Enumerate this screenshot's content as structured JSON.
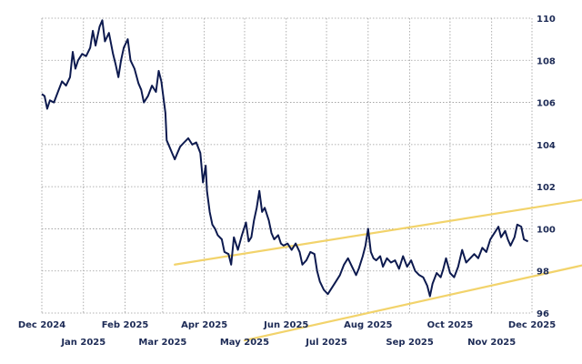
{
  "chart_data": {
    "type": "line",
    "title": "",
    "xlabel": "",
    "ylabel": "",
    "ylim": [
      96,
      110
    ],
    "x_range": [
      "2024-12-01",
      "2025-12-01"
    ],
    "y_ticks": [
      96,
      98,
      100,
      102,
      104,
      106,
      108,
      110
    ],
    "x_ticks_top_row": [
      {
        "date": "2024-12-01",
        "label": "Dec 2024"
      },
      {
        "date": "2025-02-01",
        "label": "Feb 2025"
      },
      {
        "date": "2025-04-01",
        "label": "Apr 2025"
      },
      {
        "date": "2025-06-01",
        "label": "Jun 2025"
      },
      {
        "date": "2025-08-01",
        "label": "Aug 2025"
      },
      {
        "date": "2025-10-01",
        "label": "Oct 2025"
      },
      {
        "date": "2025-12-01",
        "label": "Dec 2025"
      }
    ],
    "x_ticks_bottom_row": [
      {
        "date": "2025-01-01",
        "label": "Jan 2025"
      },
      {
        "date": "2025-03-01",
        "label": "Mar 2025"
      },
      {
        "date": "2025-05-01",
        "label": "May 2025"
      },
      {
        "date": "2025-07-01",
        "label": "Jul 2025"
      },
      {
        "date": "2025-09-01",
        "label": "Sep 2025"
      },
      {
        "date": "2025-11-01",
        "label": "Nov 2025"
      }
    ],
    "grid": true,
    "colors": {
      "line": "#0d1a4f",
      "trend": "#f2d36b",
      "grid": "#9a9a9a",
      "text": "#1c2a55"
    },
    "series": [
      {
        "points": [
          [
            "2024-12-01",
            106.4
          ],
          [
            "2024-12-03",
            106.3
          ],
          [
            "2024-12-05",
            105.7
          ],
          [
            "2024-12-07",
            106.1
          ],
          [
            "2024-12-10",
            106.0
          ],
          [
            "2024-12-13",
            106.5
          ],
          [
            "2024-12-16",
            107.0
          ],
          [
            "2024-12-19",
            106.8
          ],
          [
            "2024-12-22",
            107.2
          ],
          [
            "2024-12-24",
            108.4
          ],
          [
            "2024-12-26",
            107.6
          ],
          [
            "2024-12-28",
            108.0
          ],
          [
            "2024-12-31",
            108.3
          ],
          [
            "2025-01-03",
            108.2
          ],
          [
            "2025-01-06",
            108.6
          ],
          [
            "2025-01-08",
            109.4
          ],
          [
            "2025-01-10",
            108.7
          ],
          [
            "2025-01-13",
            109.6
          ],
          [
            "2025-01-15",
            109.9
          ],
          [
            "2025-01-17",
            108.9
          ],
          [
            "2025-01-20",
            109.3
          ],
          [
            "2025-01-23",
            108.3
          ],
          [
            "2025-01-25",
            107.8
          ],
          [
            "2025-01-27",
            107.2
          ],
          [
            "2025-01-29",
            108.0
          ],
          [
            "2025-01-31",
            108.6
          ],
          [
            "2025-02-03",
            109.0
          ],
          [
            "2025-02-05",
            108.0
          ],
          [
            "2025-02-08",
            107.6
          ],
          [
            "2025-02-11",
            106.9
          ],
          [
            "2025-02-13",
            106.6
          ],
          [
            "2025-02-15",
            106.0
          ],
          [
            "2025-02-18",
            106.3
          ],
          [
            "2025-02-21",
            106.8
          ],
          [
            "2025-02-24",
            106.5
          ],
          [
            "2025-02-26",
            107.5
          ],
          [
            "2025-02-28",
            107.0
          ],
          [
            "2025-03-03",
            105.5
          ],
          [
            "2025-03-04",
            104.2
          ],
          [
            "2025-03-06",
            103.9
          ],
          [
            "2025-03-08",
            103.6
          ],
          [
            "2025-03-10",
            103.3
          ],
          [
            "2025-03-12",
            103.6
          ],
          [
            "2025-03-14",
            103.9
          ],
          [
            "2025-03-17",
            104.1
          ],
          [
            "2025-03-20",
            104.3
          ],
          [
            "2025-03-23",
            104.0
          ],
          [
            "2025-03-26",
            104.1
          ],
          [
            "2025-03-29",
            103.6
          ],
          [
            "2025-03-31",
            102.2
          ],
          [
            "2025-04-02",
            103.0
          ],
          [
            "2025-04-03",
            101.8
          ],
          [
            "2025-04-05",
            100.8
          ],
          [
            "2025-04-07",
            100.2
          ],
          [
            "2025-04-09",
            100.0
          ],
          [
            "2025-04-11",
            99.7
          ],
          [
            "2025-04-14",
            99.5
          ],
          [
            "2025-04-16",
            98.9
          ],
          [
            "2025-04-19",
            98.8
          ],
          [
            "2025-04-21",
            98.3
          ],
          [
            "2025-04-23",
            99.6
          ],
          [
            "2025-04-26",
            99.0
          ],
          [
            "2025-04-29",
            99.7
          ],
          [
            "2025-05-02",
            100.3
          ],
          [
            "2025-05-04",
            99.4
          ],
          [
            "2025-05-06",
            99.6
          ],
          [
            "2025-05-08",
            100.4
          ],
          [
            "2025-05-10",
            101.0
          ],
          [
            "2025-05-12",
            101.8
          ],
          [
            "2025-05-14",
            100.8
          ],
          [
            "2025-05-16",
            101.0
          ],
          [
            "2025-05-19",
            100.4
          ],
          [
            "2025-05-21",
            99.8
          ],
          [
            "2025-05-23",
            99.5
          ],
          [
            "2025-05-26",
            99.7
          ],
          [
            "2025-05-28",
            99.3
          ],
          [
            "2025-05-30",
            99.2
          ],
          [
            "2025-06-02",
            99.3
          ],
          [
            "2025-06-05",
            99.0
          ],
          [
            "2025-06-08",
            99.3
          ],
          [
            "2025-06-11",
            98.9
          ],
          [
            "2025-06-13",
            98.3
          ],
          [
            "2025-06-16",
            98.5
          ],
          [
            "2025-06-19",
            98.9
          ],
          [
            "2025-06-22",
            98.8
          ],
          [
            "2025-06-24",
            98.0
          ],
          [
            "2025-06-26",
            97.5
          ],
          [
            "2025-06-29",
            97.1
          ],
          [
            "2025-07-02",
            96.9
          ],
          [
            "2025-07-05",
            97.2
          ],
          [
            "2025-07-08",
            97.5
          ],
          [
            "2025-07-11",
            97.8
          ],
          [
            "2025-07-14",
            98.3
          ],
          [
            "2025-07-17",
            98.6
          ],
          [
            "2025-07-20",
            98.2
          ],
          [
            "2025-07-23",
            97.8
          ],
          [
            "2025-07-25",
            98.1
          ],
          [
            "2025-07-28",
            98.7
          ],
          [
            "2025-07-30",
            99.2
          ],
          [
            "2025-08-01",
            100.0
          ],
          [
            "2025-08-03",
            98.9
          ],
          [
            "2025-08-05",
            98.6
          ],
          [
            "2025-08-07",
            98.5
          ],
          [
            "2025-08-10",
            98.7
          ],
          [
            "2025-08-12",
            98.2
          ],
          [
            "2025-08-15",
            98.6
          ],
          [
            "2025-08-18",
            98.4
          ],
          [
            "2025-08-21",
            98.5
          ],
          [
            "2025-08-24",
            98.1
          ],
          [
            "2025-08-27",
            98.7
          ],
          [
            "2025-08-30",
            98.2
          ],
          [
            "2025-09-02",
            98.5
          ],
          [
            "2025-09-05",
            98.0
          ],
          [
            "2025-09-08",
            97.8
          ],
          [
            "2025-09-11",
            97.7
          ],
          [
            "2025-09-14",
            97.3
          ],
          [
            "2025-09-16",
            96.8
          ],
          [
            "2025-09-18",
            97.4
          ],
          [
            "2025-09-21",
            97.9
          ],
          [
            "2025-09-24",
            97.7
          ],
          [
            "2025-09-26",
            98.1
          ],
          [
            "2025-09-28",
            98.6
          ],
          [
            "2025-10-01",
            97.9
          ],
          [
            "2025-10-04",
            97.7
          ],
          [
            "2025-10-07",
            98.2
          ],
          [
            "2025-10-10",
            99.0
          ],
          [
            "2025-10-13",
            98.4
          ],
          [
            "2025-10-16",
            98.6
          ],
          [
            "2025-10-19",
            98.8
          ],
          [
            "2025-10-22",
            98.6
          ],
          [
            "2025-10-25",
            99.1
          ],
          [
            "2025-10-28",
            98.9
          ],
          [
            "2025-10-31",
            99.5
          ],
          [
            "2025-11-03",
            99.8
          ],
          [
            "2025-11-06",
            100.1
          ],
          [
            "2025-11-08",
            99.6
          ],
          [
            "2025-11-11",
            99.9
          ],
          [
            "2025-11-13",
            99.5
          ],
          [
            "2025-11-15",
            99.2
          ],
          [
            "2025-11-18",
            99.6
          ],
          [
            "2025-11-20",
            100.2
          ],
          [
            "2025-11-23",
            100.1
          ],
          [
            "2025-11-25",
            99.5
          ],
          [
            "2025-11-28",
            99.4
          ]
        ]
      }
    ],
    "trend_lines": [
      {
        "start": [
          "2025-03-10",
          98.3
        ],
        "end": [
          "2026-01-10",
          101.4
        ]
      },
      {
        "start": [
          "2025-05-01",
          94.7
        ],
        "end": [
          "2026-01-10",
          98.3
        ]
      }
    ]
  }
}
